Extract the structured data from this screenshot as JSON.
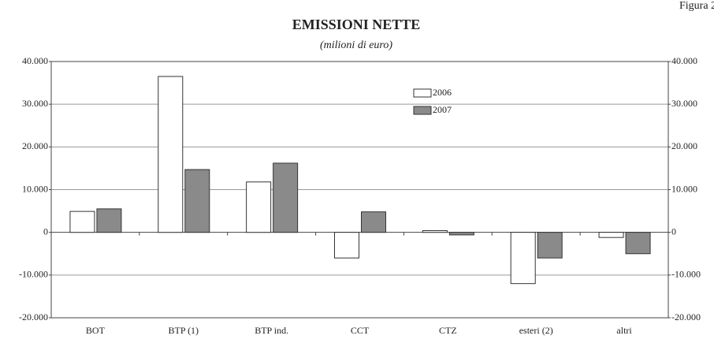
{
  "chart_data": {
    "type": "bar",
    "title": "EMISSIONI NETTE",
    "subtitle": "(milioni di euro)",
    "figure_label": "Figura 2",
    "categories": [
      "BOT",
      "BTP (1)",
      "BTP  ind.",
      "CCT",
      "CTZ",
      "esteri (2)",
      "altri"
    ],
    "series": [
      {
        "name": "2006",
        "color": "#ffffff",
        "values": [
          4900,
          36500,
          11800,
          -6000,
          400,
          -12000,
          -1200
        ]
      },
      {
        "name": "2007",
        "color": "#8a8a8a",
        "values": [
          5500,
          14700,
          16200,
          4800,
          -600,
          -6000,
          -5000
        ]
      }
    ],
    "ylim": [
      -20000,
      40000
    ],
    "yticks": [
      {
        "value": -20000,
        "label": "-20.000"
      },
      {
        "value": -10000,
        "label": "-10.000"
      },
      0,
      {
        "value": 10000,
        "label": "10.000"
      },
      {
        "value": 20000,
        "label": "20.000"
      },
      {
        "value": 30000,
        "label": "30.000"
      },
      {
        "value": 40000,
        "label": "40.000"
      }
    ],
    "y2lim": [
      -20000,
      40000
    ],
    "y2ticks": [
      {
        "value": -20000,
        "label": "-20.000"
      },
      {
        "value": -10000,
        "label": "-10.000"
      },
      0,
      {
        "value": 10000,
        "label": "10.000"
      },
      {
        "value": 20000,
        "label": "20.000"
      },
      {
        "value": 30000,
        "label": "30.000"
      },
      {
        "value": 40000,
        "label": "40.000"
      }
    ],
    "grid": true
  }
}
